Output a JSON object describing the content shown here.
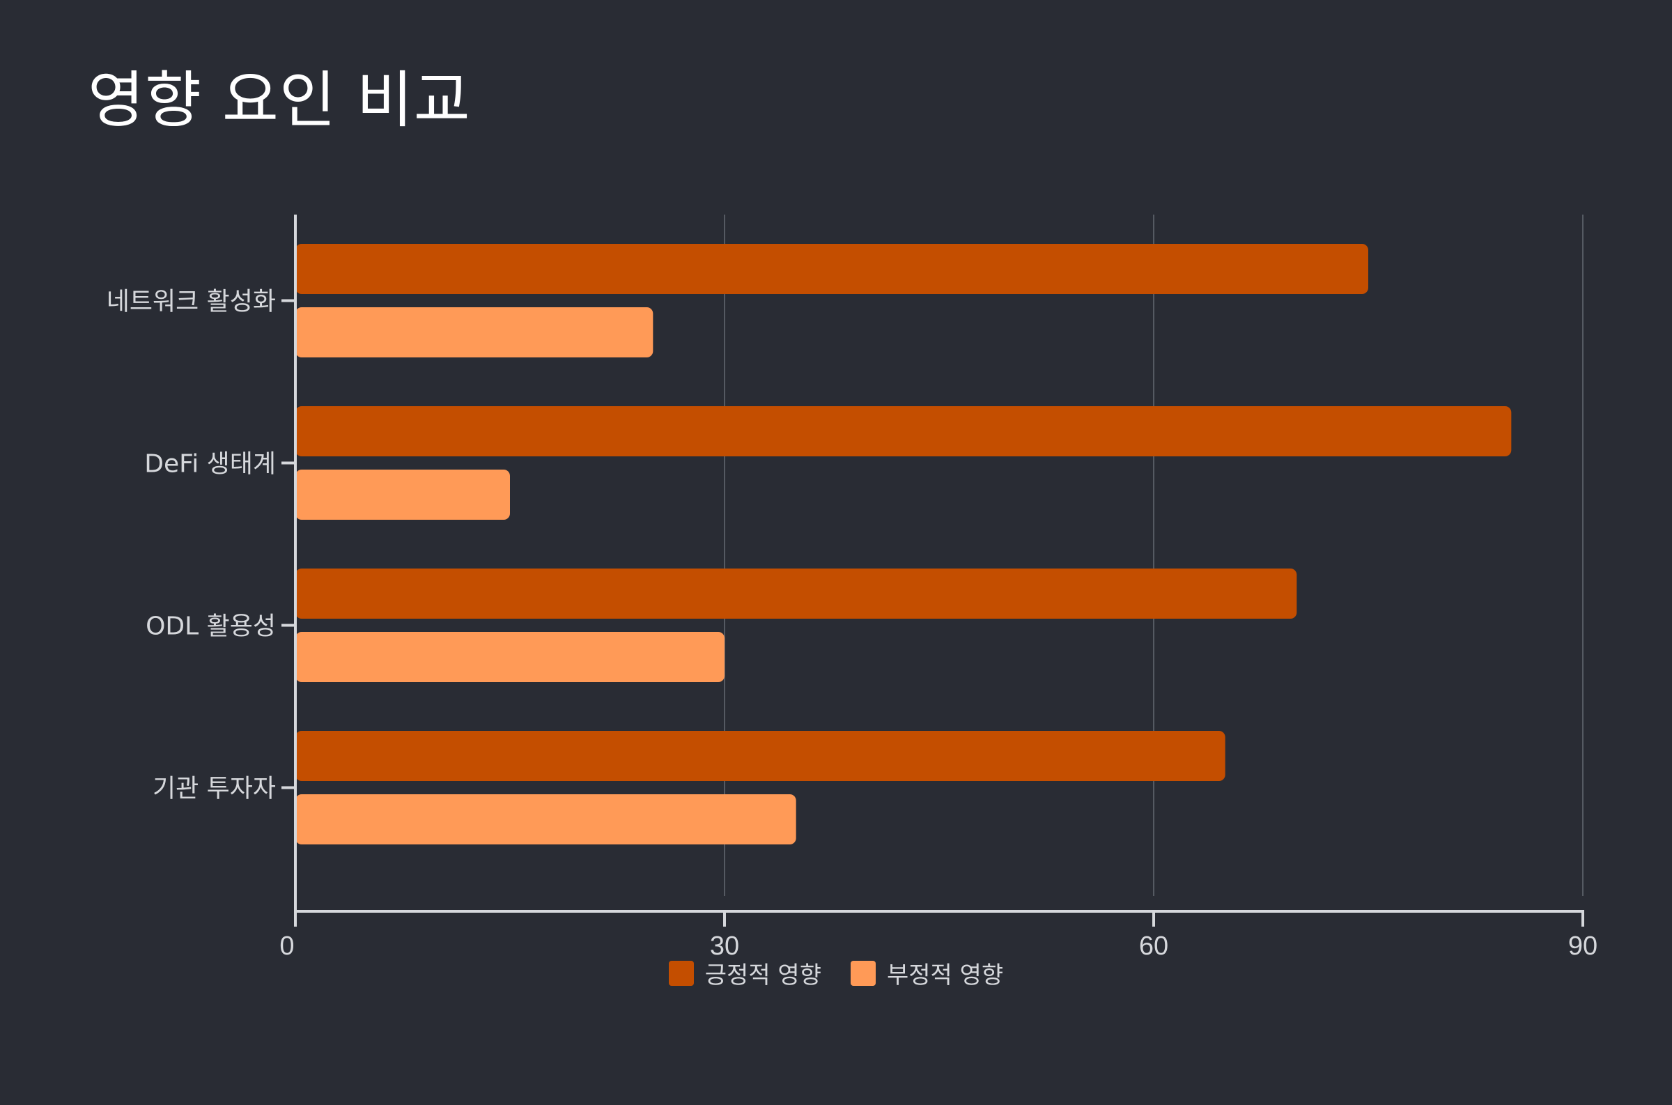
{
  "colors": {
    "background": "#292c34",
    "positive": "#c44e00",
    "negative": "#ff9a57",
    "grid": "#555a62",
    "axis": "#d6d8dc",
    "text": "#d6d8dc"
  },
  "chart_data": {
    "type": "bar",
    "orientation": "horizontal",
    "title": "영향 요인 비교",
    "categories": [
      "네트워크 활성화",
      "DeFi 생태계",
      "ODL 활용성",
      "기관 투자자"
    ],
    "series": [
      {
        "name": "긍정적 영향",
        "values": [
          75,
          85,
          70,
          65
        ]
      },
      {
        "name": "부정적 영향",
        "values": [
          25,
          15,
          30,
          35
        ]
      }
    ],
    "xlim": [
      0,
      90
    ],
    "xticks": [
      0,
      30,
      60,
      90
    ],
    "grid": true,
    "legend": "bottom"
  }
}
